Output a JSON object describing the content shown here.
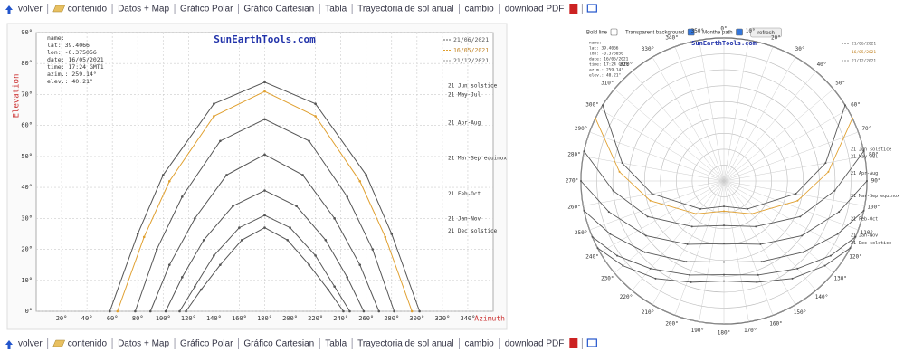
{
  "nav": {
    "links": [
      "volver",
      "contenido",
      "Datos + Map",
      "Gráfico Polar",
      "Gráfico Cartesian",
      "Tabla",
      "Trayectoria de sol anual",
      "cambio",
      "download PDF"
    ]
  },
  "controls": [
    {
      "label": "Bold line",
      "checked": false
    },
    {
      "label": "Transparent background",
      "checked": true
    },
    {
      "label": "Monthe path",
      "checked": true
    }
  ],
  "refresh": "refresh",
  "chart_data": [
    {
      "type": "line",
      "title": "SunEarthTools.com",
      "xlabel": "Azimuth",
      "ylabel": "Elevation",
      "info": [
        "name:",
        "lat: 39.4066",
        "lon: -0.375056",
        "date: 16/05/2021",
        "time: 17:24 GMT1",
        "azim.: 259.14°",
        "elev.: 40.21°"
      ],
      "legend": [
        {
          "name": "21/06/2021",
          "color": "#666666"
        },
        {
          "name": "16/05/2021",
          "color": "#e0a030"
        },
        {
          "name": "21/12/2021",
          "color": "#999999"
        }
      ],
      "xlim": [
        0,
        360
      ],
      "ylim": [
        0,
        90
      ],
      "grid": true,
      "xticks": [
        {
          "value": 20,
          "label": "20°"
        },
        {
          "value": 40,
          "label": "40°"
        },
        {
          "value": 60,
          "label": "60°"
        },
        {
          "value": 80,
          "label": "80°"
        },
        {
          "value": 100,
          "label": "100°"
        },
        {
          "value": 120,
          "label": "120°"
        },
        {
          "value": 140,
          "label": "140°"
        },
        {
          "value": 160,
          "label": "160°"
        },
        {
          "value": 180,
          "label": "180°"
        },
        {
          "value": 200,
          "label": "200°"
        },
        {
          "value": 220,
          "label": "220°"
        },
        {
          "value": 240,
          "label": "240°"
        },
        {
          "value": 260,
          "label": "260°"
        },
        {
          "value": 280,
          "label": "280°"
        },
        {
          "value": 300,
          "label": "300°"
        },
        {
          "value": 320,
          "label": "320°"
        },
        {
          "value": 340,
          "label": "340°"
        }
      ],
      "yticks": [
        {
          "value": 0,
          "label": "0°"
        },
        {
          "value": 10,
          "label": "10°"
        },
        {
          "value": 20,
          "label": "20°"
        },
        {
          "value": 30,
          "label": "30°"
        },
        {
          "value": 40,
          "label": "40°"
        },
        {
          "value": 50,
          "label": "50°"
        },
        {
          "value": 60,
          "label": "60°"
        },
        {
          "value": 70,
          "label": "70°"
        },
        {
          "value": 80,
          "label": "80°"
        },
        {
          "value": 90,
          "label": "90°"
        }
      ],
      "series": [
        {
          "name": "21 Jun solstice",
          "color": "#555555",
          "x": [
            58,
            80,
            100,
            140,
            180,
            220,
            260,
            280,
            302
          ],
          "values": [
            0,
            25,
            44,
            67,
            74,
            67,
            44,
            25,
            0
          ]
        },
        {
          "name": "21 May-Jul",
          "color": "#e0a030",
          "x": [
            64,
            85,
            105,
            140,
            180,
            220,
            255,
            275,
            296
          ],
          "values": [
            0,
            24,
            42,
            63,
            71,
            63,
            42,
            24,
            0
          ]
        },
        {
          "name": "21 Apr-Aug",
          "color": "#555555",
          "x": [
            78,
            95,
            115,
            145,
            180,
            215,
            245,
            265,
            282
          ],
          "values": [
            0,
            20,
            37,
            55,
            62,
            55,
            37,
            20,
            0
          ]
        },
        {
          "name": "21 Mar-Sep equinox",
          "color": "#555555",
          "x": [
            90,
            105,
            125,
            150,
            180,
            210,
            235,
            255,
            270
          ],
          "values": [
            0,
            15,
            30,
            44,
            50.6,
            44,
            30,
            15,
            0
          ]
        },
        {
          "name": "21 Feb-Oct",
          "color": "#555555",
          "x": [
            102,
            115,
            132,
            155,
            180,
            205,
            228,
            245,
            258
          ],
          "values": [
            0,
            11,
            23,
            34,
            39,
            34,
            23,
            11,
            0
          ]
        },
        {
          "name": "21 Jan-Nov",
          "color": "#555555",
          "x": [
            113,
            125,
            140,
            160,
            180,
            200,
            220,
            235,
            247
          ],
          "values": [
            0,
            8,
            18,
            27,
            31,
            27,
            18,
            8,
            0
          ]
        },
        {
          "name": "21 Dec solstice",
          "color": "#555555",
          "x": [
            118,
            130,
            145,
            162,
            180,
            198,
            215,
            230,
            242
          ],
          "values": [
            0,
            7,
            15,
            23,
            27,
            23,
            15,
            7,
            0
          ]
        }
      ]
    },
    {
      "type": "polar",
      "title": "SunEarthTools.com",
      "info": [
        "name:",
        "lat: 39.4066",
        "lon: -0.375056",
        "date: 16/05/2021",
        "time: 17:24 GMT1",
        "azim.: 259.14°",
        "elev.: 40.21°"
      ],
      "legend": [
        {
          "name": "21/06/2021",
          "color": "#666666"
        },
        {
          "name": "16/05/2021",
          "color": "#e0a030"
        },
        {
          "name": "21/12/2021",
          "color": "#999999"
        }
      ],
      "rlim": [
        0,
        90
      ],
      "rticks": [
        0,
        10,
        20,
        30,
        40,
        50,
        60,
        70,
        80
      ],
      "xticks": [
        {
          "value": 0,
          "label": "0°"
        },
        {
          "value": 10,
          "label": "10°"
        },
        {
          "value": 20,
          "label": "20°"
        },
        {
          "value": 30,
          "label": "30°"
        },
        {
          "value": 40,
          "label": "40°"
        },
        {
          "value": 50,
          "label": "50°"
        },
        {
          "value": 60,
          "label": "60°"
        },
        {
          "value": 70,
          "label": "70°"
        },
        {
          "value": 80,
          "label": "80°"
        },
        {
          "value": 90,
          "label": "90°"
        },
        {
          "value": 100,
          "label": "100°"
        },
        {
          "value": 110,
          "label": "110°"
        },
        {
          "value": 120,
          "label": "120°"
        },
        {
          "value": 130,
          "label": "130°"
        },
        {
          "value": 140,
          "label": "140°"
        },
        {
          "value": 150,
          "label": "150°"
        },
        {
          "value": 160,
          "label": "160°"
        },
        {
          "value": 170,
          "label": "170°"
        },
        {
          "value": 180,
          "label": "180°"
        },
        {
          "value": 190,
          "label": "190°"
        },
        {
          "value": 200,
          "label": "200°"
        },
        {
          "value": 210,
          "label": "210°"
        },
        {
          "value": 220,
          "label": "220°"
        },
        {
          "value": 230,
          "label": "230°"
        },
        {
          "value": 240,
          "label": "240°"
        },
        {
          "value": 250,
          "label": "250°"
        },
        {
          "value": 260,
          "label": "260°"
        },
        {
          "value": 270,
          "label": "270°"
        },
        {
          "value": 280,
          "label": "280°"
        },
        {
          "value": 290,
          "label": "290°"
        },
        {
          "value": 300,
          "label": "300°"
        },
        {
          "value": 310,
          "label": "310°"
        },
        {
          "value": 320,
          "label": "320°"
        },
        {
          "value": 330,
          "label": "330°"
        },
        {
          "value": 340,
          "label": "340°"
        },
        {
          "value": 350,
          "label": "350°"
        }
      ],
      "series": [
        {
          "name": "21 Jun solstice",
          "color": "#555555",
          "x": [
            58,
            80,
            100,
            140,
            180,
            220,
            260,
            280,
            302
          ],
          "values": [
            0,
            25,
            44,
            67,
            74,
            67,
            44,
            25,
            0
          ]
        },
        {
          "name": "21 May-Jul",
          "color": "#e0a030",
          "x": [
            64,
            85,
            105,
            140,
            180,
            220,
            255,
            275,
            296
          ],
          "values": [
            0,
            24,
            42,
            63,
            71,
            63,
            42,
            24,
            0
          ]
        },
        {
          "name": "21 Apr-Aug",
          "color": "#555555",
          "x": [
            78,
            95,
            115,
            145,
            180,
            215,
            245,
            265,
            282
          ],
          "values": [
            0,
            20,
            37,
            55,
            62,
            55,
            37,
            20,
            0
          ]
        },
        {
          "name": "21 Mar-Sep equinox",
          "color": "#555555",
          "x": [
            90,
            105,
            125,
            150,
            180,
            210,
            235,
            255,
            270
          ],
          "values": [
            0,
            15,
            30,
            44,
            50.6,
            44,
            30,
            15,
            0
          ]
        },
        {
          "name": "21 Feb-Oct",
          "color": "#555555",
          "x": [
            102,
            115,
            132,
            155,
            180,
            205,
            228,
            245,
            258
          ],
          "values": [
            0,
            11,
            23,
            34,
            39,
            34,
            23,
            11,
            0
          ]
        },
        {
          "name": "21 Jan-Nov",
          "color": "#555555",
          "x": [
            113,
            125,
            140,
            160,
            180,
            200,
            220,
            235,
            247
          ],
          "values": [
            0,
            8,
            18,
            27,
            31,
            27,
            18,
            8,
            0
          ]
        },
        {
          "name": "21 Dec solstice",
          "color": "#555555",
          "x": [
            118,
            130,
            145,
            162,
            180,
            198,
            215,
            230,
            242
          ],
          "values": [
            0,
            7,
            15,
            23,
            27,
            23,
            15,
            7,
            0
          ]
        }
      ]
    }
  ]
}
